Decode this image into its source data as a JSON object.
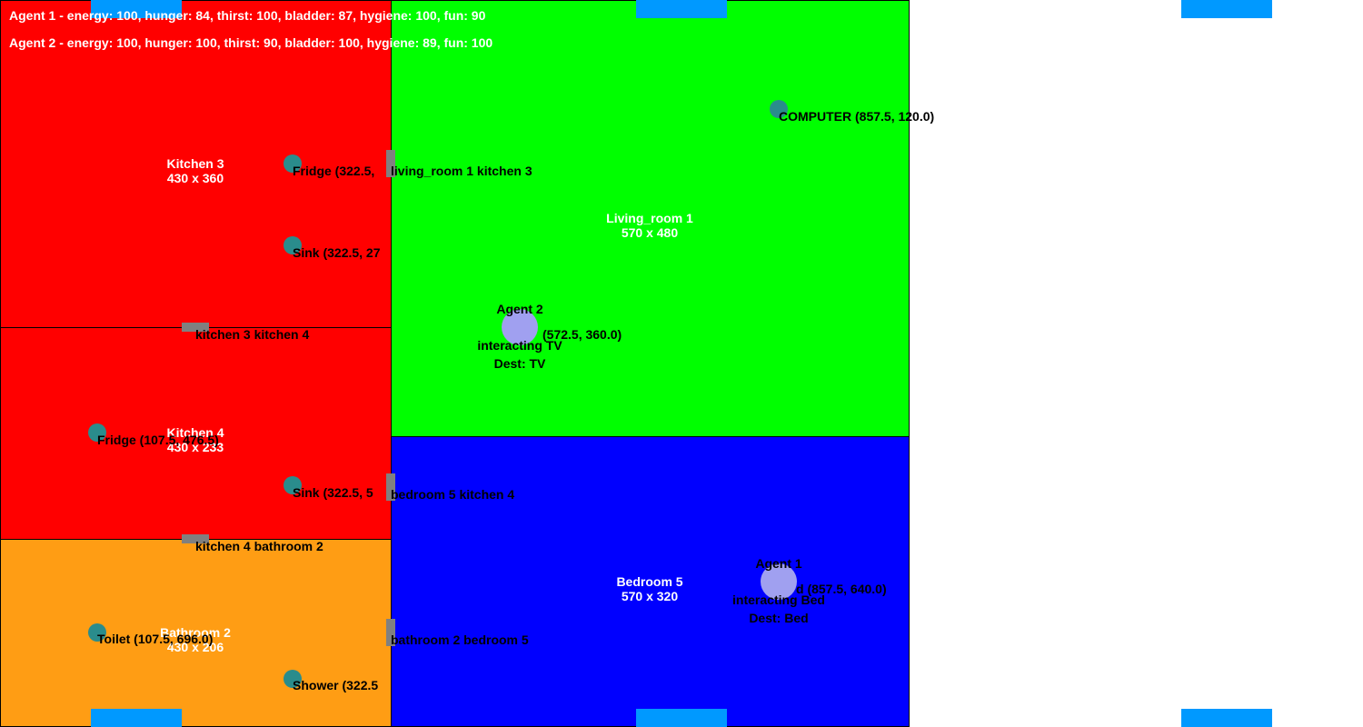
{
  "colors": {
    "kitchen": "#ff0000",
    "living_room": "#00ff00",
    "bedroom": "#0000ff",
    "bathroom": "#ff9d14",
    "window": "#0099ff",
    "door": "#808080",
    "object": "#2a8c8c",
    "agent": "#a0a0f0"
  },
  "status": {
    "agent1": "Agent 1 - energy: 100, hunger: 84, thirst: 100, bladder: 87, hygiene: 100, fun: 90",
    "agent2": "Agent 2 - energy: 100, hunger: 100, thirst: 90, bladder: 100, hygiene: 89, fun: 100"
  },
  "rooms": {
    "kitchen3": {
      "name": "Kitchen 3",
      "size": "430 x 360"
    },
    "kitchen4": {
      "name": "Kitchen 4",
      "size": "430 x 233"
    },
    "bathroom2": {
      "name": "Bathroom 2",
      "size": "430 x 206"
    },
    "living1": {
      "name": "Living_room 1",
      "size": "570 x 480"
    },
    "bedroom5": {
      "name": "Bedroom 5",
      "size": "570 x 320"
    }
  },
  "doors": {
    "living_kitchen3": "living_room 1 kitchen 3",
    "kitchen3_kitchen4": "kitchen 3 kitchen 4",
    "bedroom5_kitchen4": "bedroom 5 kitchen 4",
    "kitchen4_bathroom2": "kitchen 4 bathroom 2",
    "bathroom2_bedroom5": "bathroom 2 bedroom 5"
  },
  "objects": {
    "fridge3": "Fridge (322.5,",
    "sink3": "Sink (322.5, 27",
    "fridge4": "Fridge (107.5, 476.5)",
    "sink4": "Sink (322.5, 5",
    "toilet": "Toilet (107.5, 696.0)",
    "shower": "Shower (322.5",
    "computer": "COMPUTER (857.5, 120.0)"
  },
  "agents": {
    "agent2": {
      "name": "Agent 2",
      "coord": "(572.5, 360.0)",
      "state": "interacting TV",
      "dest": "Dest: TV"
    },
    "agent1": {
      "name": "Agent 1",
      "coord": "d (857.5, 640.0)",
      "state": "interacting Bed",
      "dest": "Dest: Bed"
    }
  }
}
